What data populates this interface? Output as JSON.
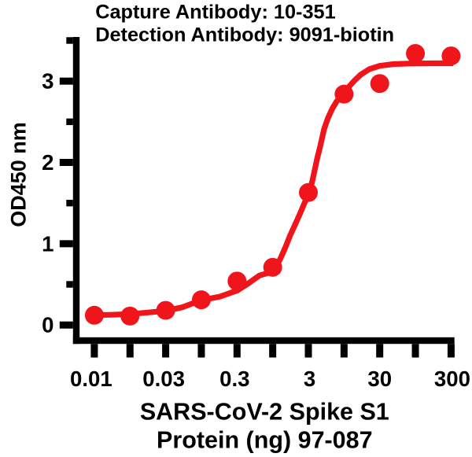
{
  "figure": {
    "background": "#ffffff",
    "axis_color": "#000000",
    "text_color": "#000000"
  },
  "chart_data": {
    "type": "scatter",
    "subtype": "sandwich-ELISA dose-response curve with sigmoidal (4PL) fit",
    "title_lines": [
      "Capture Antibody: 10-351",
      "Detection Antibody: 9091-biotin"
    ],
    "xlabel_lines": [
      "SARS-CoV-2 Spike S1",
      "Protein (ng) 97-087"
    ],
    "ylabel": "OD450 nm",
    "x_scale": "log",
    "x_tick_labels": [
      "0.01",
      "",
      "0.03",
      "",
      "0.3",
      "",
      "3",
      "",
      "30",
      "",
      "300"
    ],
    "x": [
      0.01,
      0.02,
      0.03,
      0.1,
      0.3,
      1,
      3,
      10,
      30,
      100,
      300
    ],
    "y_od450": [
      0.12,
      0.11,
      0.18,
      0.31,
      0.54,
      0.71,
      1.63,
      2.84,
      2.97,
      3.34,
      3.31
    ],
    "y_ticks": [
      0,
      1,
      2,
      3
    ],
    "y_minor_ticks": [
      0.5,
      1.5,
      2.5,
      3.5
    ],
    "ylim": [
      0,
      3.5
    ],
    "legend": "none",
    "grid": "off",
    "series_color": "#f0141b",
    "fit_curve_u_od": [
      [
        -0.04,
        0.122
      ],
      [
        0.47,
        0.126
      ],
      [
        0.98,
        0.134
      ],
      [
        1.53,
        0.155
      ],
      [
        2.0,
        0.174
      ],
      [
        2.46,
        0.218
      ],
      [
        2.99,
        0.305
      ],
      [
        3.52,
        0.349
      ],
      [
        4.01,
        0.426
      ],
      [
        4.32,
        0.513
      ],
      [
        4.63,
        0.61
      ],
      [
        4.85,
        0.638
      ],
      [
        5.03,
        0.66
      ],
      [
        5.22,
        0.82
      ],
      [
        5.37,
        0.97
      ],
      [
        5.49,
        1.104
      ],
      [
        5.62,
        1.229
      ],
      [
        5.77,
        1.375
      ],
      [
        5.89,
        1.5
      ],
      [
        6.03,
        1.636
      ],
      [
        6.11,
        1.771
      ],
      [
        6.25,
        2.052
      ],
      [
        6.33,
        2.197
      ],
      [
        6.44,
        2.41
      ],
      [
        6.55,
        2.546
      ],
      [
        6.67,
        2.662
      ],
      [
        6.79,
        2.749
      ],
      [
        6.97,
        2.836
      ],
      [
        7.17,
        2.948
      ],
      [
        7.32,
        3.02
      ],
      [
        7.47,
        3.081
      ],
      [
        7.7,
        3.146
      ],
      [
        8.0,
        3.188
      ],
      [
        8.39,
        3.209
      ],
      [
        8.83,
        3.216
      ],
      [
        9.5,
        3.219
      ],
      [
        10.06,
        3.219
      ]
    ]
  }
}
